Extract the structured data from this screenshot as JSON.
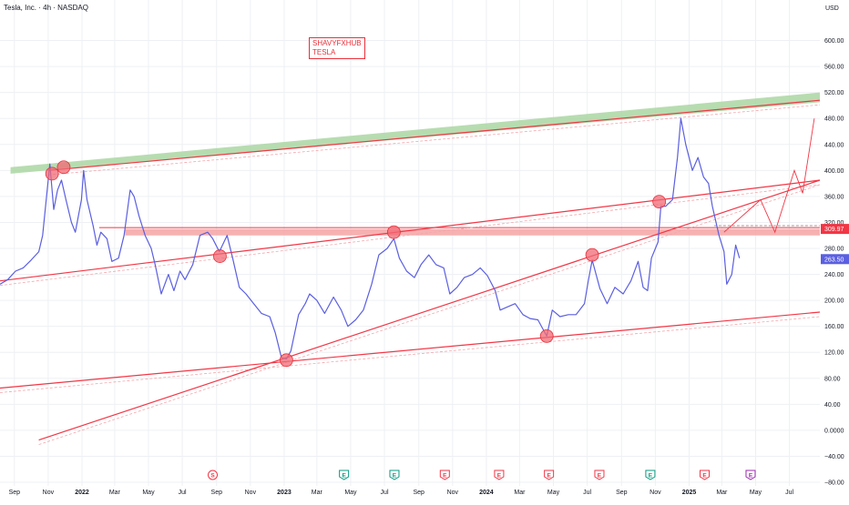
{
  "header": {
    "symbol_line": "Tesla, Inc. · 4h · NASDAQ"
  },
  "axis": {
    "currency": "USD"
  },
  "watermark": {
    "line1": "SHAVYFXHUB",
    "line2": "TESLA"
  },
  "price_tags": [
    {
      "name": "level-tag",
      "value": "309.97",
      "price": 309.97,
      "bg": "#f23645",
      "fg": "#ffffff"
    },
    {
      "name": "last-price-tag",
      "value": "263.50",
      "price": 263.5,
      "bg": "#5b5fe0",
      "fg": "#ffffff"
    }
  ],
  "event_markers": [
    {
      "letter": "S",
      "type": "split",
      "date": "2022-08-25",
      "color": "#f23645"
    },
    {
      "letter": "E",
      "type": "earnings-positive",
      "date": "2023-04-19",
      "color": "#089981"
    },
    {
      "letter": "E",
      "type": "earnings-positive",
      "date": "2023-07-19",
      "color": "#089981"
    },
    {
      "letter": "E",
      "type": "earnings-negative",
      "date": "2023-10-18",
      "color": "#f23645"
    },
    {
      "letter": "E",
      "type": "earnings-negative",
      "date": "2024-01-24",
      "color": "#f23645"
    },
    {
      "letter": "E",
      "type": "earnings-negative",
      "date": "2024-04-23",
      "color": "#f23645"
    },
    {
      "letter": "E",
      "type": "earnings-negative",
      "date": "2024-07-23",
      "color": "#f23645"
    },
    {
      "letter": "E",
      "type": "earnings-positive",
      "date": "2024-10-23",
      "color": "#089981"
    },
    {
      "letter": "E",
      "type": "earnings-negative",
      "date": "2025-01-29",
      "color": "#f23645"
    },
    {
      "letter": "E",
      "type": "earnings-upcoming",
      "date": "2025-04-22",
      "color": "#9c27b0"
    }
  ],
  "chart_data": {
    "type": "line",
    "title": "",
    "xlabel": "",
    "ylabel": "",
    "ylim": [
      -80,
      640
    ],
    "xlim": [
      "2021-08-06",
      "2025-08-25"
    ],
    "y_ticks": [
      -80,
      -40,
      0,
      40,
      80,
      120,
      160,
      200,
      240,
      280,
      320,
      360,
      400,
      440,
      480,
      520,
      560,
      600
    ],
    "y_tick_labels": [
      "−80.00",
      "−40.00",
      "0.0000",
      "40.00",
      "80.00",
      "120.00",
      "160.00",
      "200.00",
      "240.00",
      "280.00",
      "320.00",
      "360.00",
      "400.00",
      "440.00",
      "480.00",
      "520.00",
      "560.00",
      "600.00"
    ],
    "x_ticks": [
      {
        "label": "Sep",
        "date": "2021-09-01",
        "bold": false
      },
      {
        "label": "Nov",
        "date": "2021-11-01",
        "bold": false
      },
      {
        "label": "2022",
        "date": "2022-01-01",
        "bold": true
      },
      {
        "label": "Mar",
        "date": "2022-03-01",
        "bold": false
      },
      {
        "label": "May",
        "date": "2022-05-01",
        "bold": false
      },
      {
        "label": "Jul",
        "date": "2022-07-01",
        "bold": false
      },
      {
        "label": "Sep",
        "date": "2022-09-01",
        "bold": false
      },
      {
        "label": "Nov",
        "date": "2022-11-01",
        "bold": false
      },
      {
        "label": "2023",
        "date": "2023-01-01",
        "bold": true
      },
      {
        "label": "Mar",
        "date": "2023-03-01",
        "bold": false
      },
      {
        "label": "May",
        "date": "2023-05-01",
        "bold": false
      },
      {
        "label": "Jul",
        "date": "2023-07-01",
        "bold": false
      },
      {
        "label": "Sep",
        "date": "2023-09-01",
        "bold": false
      },
      {
        "label": "Nov",
        "date": "2023-11-01",
        "bold": false
      },
      {
        "label": "2024",
        "date": "2024-01-01",
        "bold": true
      },
      {
        "label": "Mar",
        "date": "2024-03-01",
        "bold": false
      },
      {
        "label": "May",
        "date": "2024-05-01",
        "bold": false
      },
      {
        "label": "Jul",
        "date": "2024-07-01",
        "bold": false
      },
      {
        "label": "Sep",
        "date": "2024-09-01",
        "bold": false
      },
      {
        "label": "Nov",
        "date": "2024-11-01",
        "bold": false
      },
      {
        "label": "2025",
        "date": "2025-01-01",
        "bold": true
      },
      {
        "label": "Mar",
        "date": "2025-03-01",
        "bold": false
      },
      {
        "label": "May",
        "date": "2025-05-01",
        "bold": false
      },
      {
        "label": "Jul",
        "date": "2025-07-01",
        "bold": false
      }
    ],
    "grid": true,
    "legend": "none",
    "series": [
      {
        "style": "price",
        "color": "#5b5fe0",
        "points": [
          [
            "2021-08-06",
            225
          ],
          [
            "2021-08-20",
            232
          ],
          [
            "2021-09-03",
            245
          ],
          [
            "2021-09-17",
            250
          ],
          [
            "2021-10-01",
            262
          ],
          [
            "2021-10-15",
            275
          ],
          [
            "2021-10-22",
            300
          ],
          [
            "2021-10-29",
            360
          ],
          [
            "2021-11-04",
            410
          ],
          [
            "2021-11-11",
            340
          ],
          [
            "2021-11-18",
            370
          ],
          [
            "2021-11-25",
            385
          ],
          [
            "2021-12-03",
            355
          ],
          [
            "2021-12-13",
            320
          ],
          [
            "2021-12-20",
            305
          ],
          [
            "2021-12-31",
            355
          ],
          [
            "2022-01-04",
            400
          ],
          [
            "2022-01-10",
            355
          ],
          [
            "2022-01-21",
            315
          ],
          [
            "2022-01-28",
            285
          ],
          [
            "2022-02-04",
            305
          ],
          [
            "2022-02-15",
            295
          ],
          [
            "2022-02-24",
            260
          ],
          [
            "2022-03-08",
            265
          ],
          [
            "2022-03-18",
            300
          ],
          [
            "2022-03-29",
            370
          ],
          [
            "2022-04-05",
            360
          ],
          [
            "2022-04-14",
            330
          ],
          [
            "2022-04-25",
            300
          ],
          [
            "2022-05-06",
            280
          ],
          [
            "2022-05-13",
            255
          ],
          [
            "2022-05-24",
            210
          ],
          [
            "2022-06-06",
            240
          ],
          [
            "2022-06-16",
            215
          ],
          [
            "2022-06-27",
            245
          ],
          [
            "2022-07-06",
            232
          ],
          [
            "2022-07-20",
            255
          ],
          [
            "2022-08-02",
            300
          ],
          [
            "2022-08-16",
            305
          ],
          [
            "2022-08-25",
            295
          ],
          [
            "2022-09-06",
            275
          ],
          [
            "2022-09-20",
            300
          ],
          [
            "2022-09-30",
            265
          ],
          [
            "2022-10-12",
            220
          ],
          [
            "2022-10-24",
            210
          ],
          [
            "2022-11-07",
            195
          ],
          [
            "2022-11-21",
            180
          ],
          [
            "2022-12-06",
            175
          ],
          [
            "2022-12-16",
            150
          ],
          [
            "2022-12-27",
            112
          ],
          [
            "2023-01-05",
            110
          ],
          [
            "2023-01-13",
            122
          ],
          [
            "2023-01-27",
            178
          ],
          [
            "2023-02-08",
            195
          ],
          [
            "2023-02-16",
            210
          ],
          [
            "2023-03-01",
            200
          ],
          [
            "2023-03-15",
            180
          ],
          [
            "2023-03-31",
            205
          ],
          [
            "2023-04-14",
            185
          ],
          [
            "2023-04-26",
            160
          ],
          [
            "2023-05-10",
            170
          ],
          [
            "2023-05-24",
            185
          ],
          [
            "2023-06-08",
            225
          ],
          [
            "2023-06-21",
            270
          ],
          [
            "2023-07-06",
            280
          ],
          [
            "2023-07-18",
            295
          ],
          [
            "2023-07-28",
            265
          ],
          [
            "2023-08-10",
            245
          ],
          [
            "2023-08-24",
            235
          ],
          [
            "2023-09-05",
            255
          ],
          [
            "2023-09-19",
            270
          ],
          [
            "2023-10-02",
            255
          ],
          [
            "2023-10-16",
            250
          ],
          [
            "2023-10-27",
            210
          ],
          [
            "2023-11-09",
            220
          ],
          [
            "2023-11-22",
            235
          ],
          [
            "2023-12-07",
            240
          ],
          [
            "2023-12-21",
            250
          ],
          [
            "2024-01-03",
            238
          ],
          [
            "2024-01-17",
            215
          ],
          [
            "2024-01-26",
            185
          ],
          [
            "2024-02-08",
            190
          ],
          [
            "2024-02-22",
            195
          ],
          [
            "2024-03-07",
            178
          ],
          [
            "2024-03-20",
            172
          ],
          [
            "2024-04-03",
            170
          ],
          [
            "2024-04-19",
            145
          ],
          [
            "2024-04-29",
            185
          ],
          [
            "2024-05-13",
            175
          ],
          [
            "2024-05-28",
            178
          ],
          [
            "2024-06-11",
            178
          ],
          [
            "2024-06-26",
            195
          ],
          [
            "2024-07-03",
            230
          ],
          [
            "2024-07-10",
            262
          ],
          [
            "2024-07-24",
            218
          ],
          [
            "2024-08-06",
            195
          ],
          [
            "2024-08-20",
            220
          ],
          [
            "2024-09-04",
            210
          ],
          [
            "2024-09-18",
            230
          ],
          [
            "2024-10-01",
            260
          ],
          [
            "2024-10-10",
            220
          ],
          [
            "2024-10-18",
            215
          ],
          [
            "2024-10-25",
            265
          ],
          [
            "2024-11-06",
            290
          ],
          [
            "2024-11-11",
            345
          ],
          [
            "2024-11-20",
            345
          ],
          [
            "2024-12-02",
            355
          ],
          [
            "2024-12-11",
            420
          ],
          [
            "2024-12-17",
            480
          ],
          [
            "2024-12-26",
            440
          ],
          [
            "2025-01-07",
            400
          ],
          [
            "2025-01-17",
            420
          ],
          [
            "2025-01-27",
            390
          ],
          [
            "2025-02-05",
            380
          ],
          [
            "2025-02-12",
            345
          ],
          [
            "2025-02-24",
            300
          ],
          [
            "2025-03-05",
            275
          ],
          [
            "2025-03-10",
            225
          ],
          [
            "2025-03-19",
            240
          ],
          [
            "2025-03-26",
            285
          ],
          [
            "2025-04-02",
            265
          ]
        ]
      },
      {
        "style": "trendline",
        "color": "#f23645",
        "points": [
          [
            "2021-11-01",
            400
          ],
          [
            "2025-08-25",
            508
          ]
        ]
      },
      {
        "style": "trendline",
        "color": "#f23645",
        "points": [
          [
            "2021-08-06",
            230
          ],
          [
            "2025-08-25",
            385
          ]
        ]
      },
      {
        "style": "trendline",
        "color": "#f23645",
        "points": [
          [
            "2021-08-06",
            65
          ],
          [
            "2025-08-25",
            182
          ]
        ]
      },
      {
        "style": "trendline",
        "color": "#f23645",
        "points": [
          [
            "2021-10-15",
            -15
          ],
          [
            "2025-08-25",
            385
          ]
        ]
      },
      {
        "style": "projection",
        "color": "#f23645",
        "points": [
          [
            "2025-03-05",
            305
          ],
          [
            "2025-05-10",
            355
          ],
          [
            "2025-06-05",
            305
          ],
          [
            "2025-07-10",
            400
          ],
          [
            "2025-07-25",
            365
          ],
          [
            "2025-08-15",
            480
          ]
        ]
      }
    ],
    "zones": [
      {
        "name": "resistance-channel",
        "color": "#aad6a2",
        "from": [
          [
            "2021-08-25",
            395
          ],
          [
            "2025-08-25",
            505
          ]
        ],
        "to": [
          [
            "2021-08-25",
            405
          ],
          [
            "2025-08-25",
            520
          ]
        ]
      },
      {
        "name": "horizontal-level",
        "color": "#f4a3a3",
        "from": [
          [
            "2022-03-20",
            300
          ],
          [
            "2025-08-25",
            300
          ]
        ],
        "to": [
          [
            "2022-03-20",
            310
          ],
          [
            "2025-08-25",
            310
          ]
        ]
      }
    ],
    "level_lines": [
      {
        "price": 312,
        "from": "2022-02-01",
        "to": "2025-08-25",
        "color": "#f23645"
      },
      {
        "price": 315,
        "from": "2025-02-15",
        "to": "2025-08-25",
        "color": "#9e9e9e"
      }
    ],
    "highlight_points": [
      [
        "2021-11-08",
        395
      ],
      [
        "2021-11-29",
        405
      ],
      [
        "2022-09-07",
        268
      ],
      [
        "2023-01-05",
        108
      ],
      [
        "2023-07-18",
        305
      ],
      [
        "2024-04-19",
        145
      ],
      [
        "2024-07-10",
        270
      ],
      [
        "2024-11-08",
        352
      ]
    ]
  }
}
